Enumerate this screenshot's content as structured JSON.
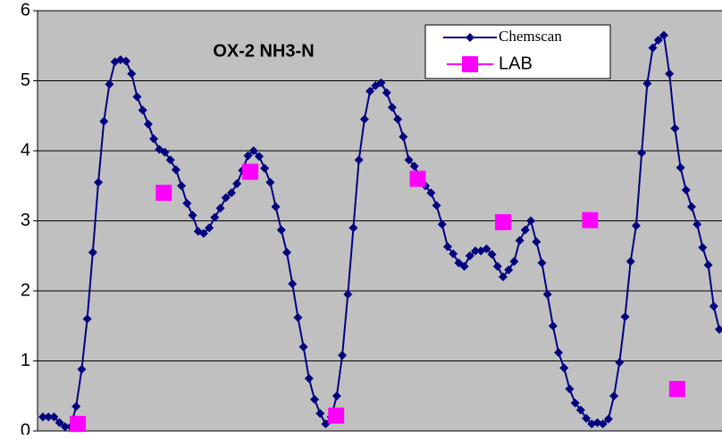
{
  "chart_data": {
    "type": "line",
    "title": "OX-2 NH3-N",
    "ylim": [
      0,
      6
    ],
    "yticks": [
      0,
      1,
      2,
      3,
      4,
      5,
      6
    ],
    "grid": true,
    "legend": "top-right",
    "series": [
      {
        "name": "Chemscan",
        "color": "#000080",
        "marker": "diamond",
        "line": true,
        "values": [
          0.2,
          0.2,
          0.2,
          0.12,
          0.06,
          0.06,
          0.35,
          0.88,
          1.6,
          2.55,
          3.55,
          4.42,
          4.95,
          5.27,
          5.3,
          5.28,
          5.1,
          4.77,
          4.58,
          4.38,
          4.17,
          4.02,
          3.98,
          3.87,
          3.73,
          3.5,
          3.25,
          3.08,
          2.85,
          2.82,
          2.9,
          3.05,
          3.18,
          3.33,
          3.4,
          3.53,
          3.72,
          3.93,
          4.0,
          3.92,
          3.75,
          3.55,
          3.2,
          2.87,
          2.55,
          2.1,
          1.62,
          1.2,
          0.75,
          0.45,
          0.25,
          0.1,
          0.2,
          0.5,
          1.08,
          1.95,
          2.9,
          3.87,
          4.45,
          4.85,
          4.93,
          4.97,
          4.83,
          4.62,
          4.45,
          4.2,
          3.87,
          3.78,
          3.62,
          3.5,
          3.4,
          3.22,
          2.95,
          2.63,
          2.53,
          2.4,
          2.35,
          2.5,
          2.57,
          2.57,
          2.6,
          2.52,
          2.35,
          2.2,
          2.3,
          2.42,
          2.72,
          2.87,
          3.0,
          2.7,
          2.4,
          1.95,
          1.5,
          1.12,
          0.9,
          0.6,
          0.4,
          0.3,
          0.18,
          0.1,
          0.12,
          0.1,
          0.17,
          0.5,
          0.98,
          1.63,
          2.42,
          2.93,
          3.97,
          4.96,
          5.47,
          5.58,
          5.65,
          5.1,
          4.32,
          3.76,
          3.44,
          3.2,
          2.95,
          2.62,
          2.37,
          1.78,
          1.45
        ]
      },
      {
        "name": "LAB",
        "color": "#ff00ff",
        "marker": "square",
        "line": false,
        "x": [
          6.3,
          21.8,
          37.4,
          52.9,
          67.6,
          83,
          98.7,
          114.4
        ],
        "values": [
          0.1,
          3.4,
          3.7,
          0.22,
          3.6,
          2.98,
          3.01,
          0.6
        ]
      }
    ]
  }
}
